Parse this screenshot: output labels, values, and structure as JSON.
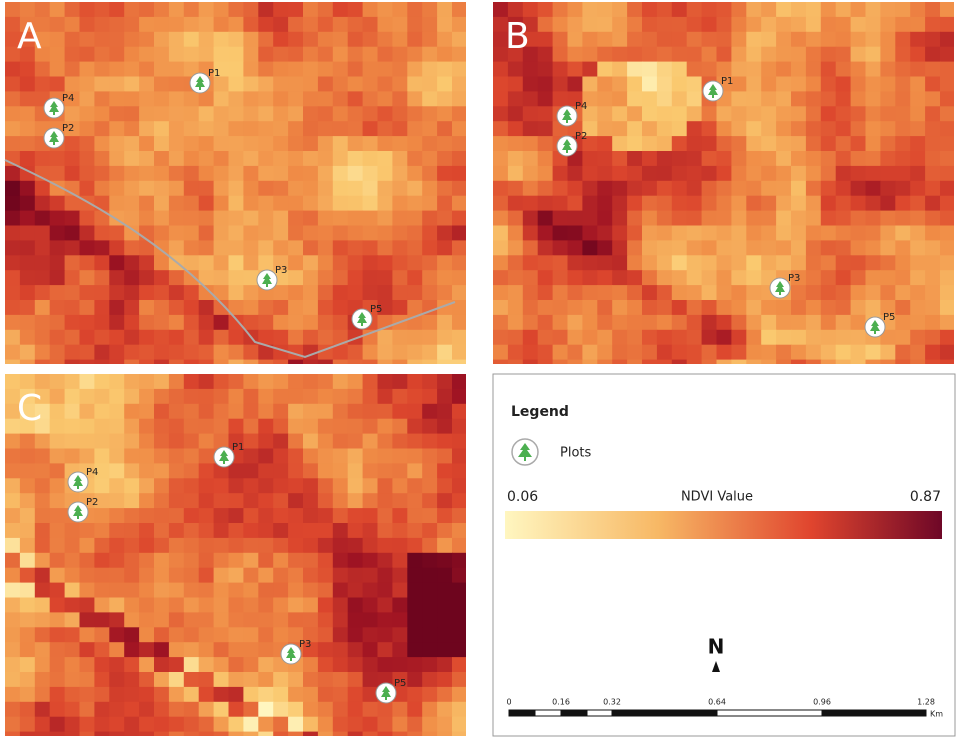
{
  "panels": [
    {
      "label": "A",
      "plots": [
        "P1",
        "P4",
        "P2",
        "P3",
        "P5"
      ]
    },
    {
      "label": "B",
      "plots": [
        "P1",
        "P4",
        "P2",
        "P3",
        "P5"
      ]
    },
    {
      "label": "C",
      "plots": [
        "P1",
        "P4",
        "P2",
        "P3",
        "P5"
      ]
    }
  ],
  "legend": {
    "title": "Legend",
    "symbol_label": "Plots",
    "ramp": {
      "min": "0.06",
      "title": "NDVI Value",
      "max": "0.87"
    }
  },
  "north_arrow": "N",
  "scale_bar": {
    "ticks": [
      "0",
      "0.16",
      "0.32",
      "0.64",
      "0.96",
      "1.28"
    ],
    "unit": "Km"
  }
}
